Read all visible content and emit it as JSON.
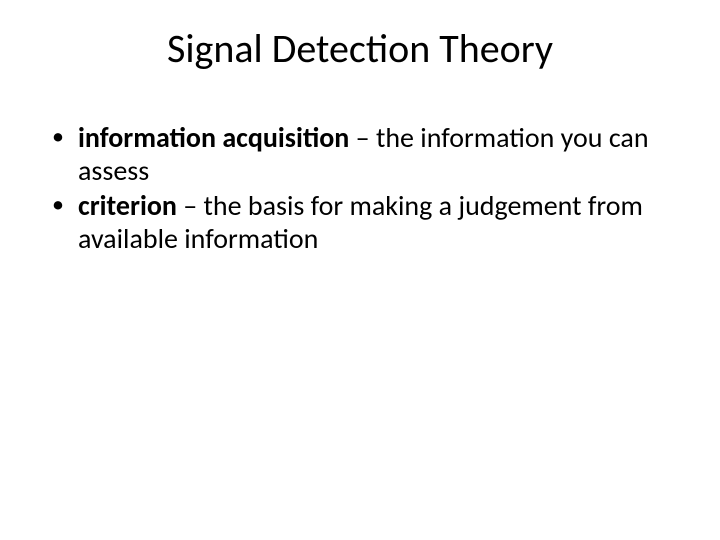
{
  "slide": {
    "title": "Signal Detection Theory",
    "bullets": [
      {
        "term": "information acquisition",
        "sep": " – ",
        "def": "the information you can assess"
      },
      {
        "term": "criterion",
        "sep": " – ",
        "def": "the basis for making a judgement from available information"
      }
    ]
  },
  "style": {
    "background_color": "#ffffff",
    "text_color": "#000000",
    "title_fontsize": 40,
    "body_fontsize": 28,
    "font_family": "Calibri"
  }
}
